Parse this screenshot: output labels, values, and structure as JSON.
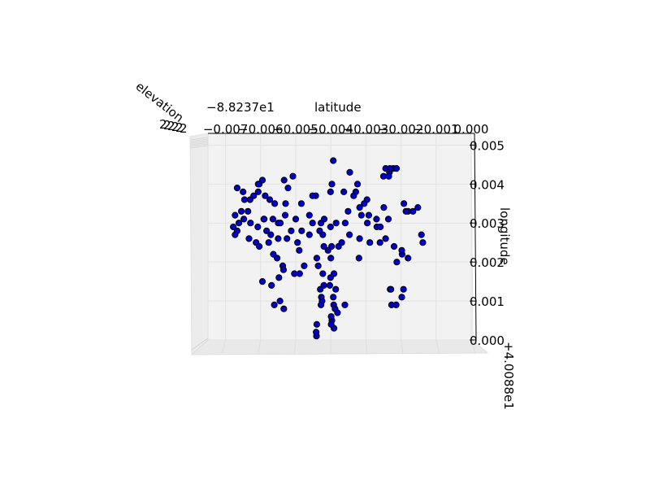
{
  "chart_data": {
    "type": "scatter",
    "projection": "3d",
    "axis_labels": {
      "x": "latitude",
      "y": "longitude",
      "z": "elevation"
    },
    "offset_text": {
      "x": "−8.8237e1",
      "y": "+4.0088e1"
    },
    "x_ticks": [
      "−0.007",
      "−0.006",
      "−0.005",
      "−0.004",
      "−0.003",
      "−0.002",
      "−0.001",
      "0.000"
    ],
    "x_ticks_vis": [
      "0.007",
      "0.006",
      "0.005",
      "0.004",
      "0.003",
      "0.002",
      "0.001",
      "0.000"
    ],
    "y_ticks": [
      "0.000",
      "0.001",
      "0.002",
      "0.003",
      "0.004",
      "0.005"
    ],
    "xlim": [
      -0.0075,
      0.0
    ],
    "ylim": [
      0.0,
      0.0053
    ],
    "grid": true,
    "marker_color": "#0000cc",
    "marker_edge": "#000000",
    "pane_color": "#f2f2f2",
    "points": [
      [
        -0.00393,
        0.0046
      ],
      [
        -0.00346,
        0.0043
      ],
      [
        -0.00222,
        0.0044
      ],
      [
        -0.00213,
        0.0044
      ],
      [
        -0.00233,
        0.0043
      ],
      [
        -0.00235,
        0.0042
      ],
      [
        -0.00244,
        0.0044
      ],
      [
        -0.0025,
        0.0042
      ],
      [
        -0.00232,
        0.0044
      ],
      [
        -0.00604,
        0.004
      ],
      [
        -0.00607,
        0.004
      ],
      [
        -0.00595,
        0.0041
      ],
      [
        -0.00607,
        0.0038
      ],
      [
        -0.0062,
        0.0037
      ],
      [
        -0.0063,
        0.0036
      ],
      [
        -0.00587,
        0.0037
      ],
      [
        -0.00533,
        0.0041
      ],
      [
        -0.00508,
        0.0042
      ],
      [
        -0.00522,
        0.0039
      ],
      [
        -0.00574,
        0.0036
      ],
      [
        -0.0056,
        0.0035
      ],
      [
        -0.00529,
        0.0035
      ],
      [
        -0.00484,
        0.0035
      ],
      [
        -0.00443,
        0.0037
      ],
      [
        -0.00452,
        0.0037
      ],
      [
        -0.00401,
        0.0038
      ],
      [
        -0.00397,
        0.004
      ],
      [
        -0.00363,
        0.0038
      ],
      [
        -0.00324,
        0.004
      ],
      [
        -0.00335,
        0.0037
      ],
      [
        -0.00329,
        0.0038
      ],
      [
        -0.00297,
        0.0036
      ],
      [
        -0.00305,
        0.0035
      ],
      [
        -0.00318,
        0.0034
      ],
      [
        -0.00292,
        0.0032
      ],
      [
        -0.00249,
        0.0034
      ],
      [
        -0.00192,
        0.0035
      ],
      [
        -0.00152,
        0.0034
      ],
      [
        -0.0018,
        0.0033
      ],
      [
        -0.00166,
        0.0033
      ],
      [
        -0.00646,
        0.0036
      ],
      [
        -0.00636,
        0.0033
      ],
      [
        -0.00655,
        0.0033
      ],
      [
        -0.00648,
        0.0031
      ],
      [
        -0.00629,
        0.003
      ],
      [
        -0.00608,
        0.0029
      ],
      [
        -0.00591,
        0.0031
      ],
      [
        -0.0059,
        0.0031
      ],
      [
        -0.00565,
        0.0031
      ],
      [
        -0.0055,
        0.003
      ],
      [
        -0.00544,
        0.003
      ],
      [
        -0.0053,
        0.0032
      ],
      [
        -0.005,
        0.0031
      ],
      [
        -0.00461,
        0.0032
      ],
      [
        -0.00483,
        0.0028
      ],
      [
        -0.00452,
        0.003
      ],
      [
        -0.00428,
        0.003
      ],
      [
        -0.00419,
        0.0031
      ],
      [
        -0.00401,
        0.0029
      ],
      [
        -0.00385,
        0.003
      ],
      [
        -0.00359,
        0.003
      ],
      [
        -0.00351,
        0.0033
      ],
      [
        -0.00313,
        0.0032
      ],
      [
        -0.00296,
        0.003
      ],
      [
        -0.0027,
        0.0031
      ],
      [
        -0.00269,
        0.0029
      ],
      [
        -0.00259,
        0.0029
      ],
      [
        -0.00236,
        0.0031
      ],
      [
        -0.00244,
        0.0026
      ],
      [
        -0.00678,
        0.0029
      ],
      [
        -0.00667,
        0.0028
      ],
      [
        -0.00673,
        0.0027
      ],
      [
        -0.00633,
        0.0026
      ],
      [
        -0.00613,
        0.0025
      ],
      [
        -0.00604,
        0.0024
      ],
      [
        -0.00577,
        0.0025
      ],
      [
        -0.0055,
        0.0026
      ],
      [
        -0.00525,
        0.0026
      ],
      [
        -0.00495,
        0.0025
      ],
      [
        -0.0049,
        0.0023
      ],
      [
        -0.00461,
        0.0027
      ],
      [
        -0.00432,
        0.0028
      ],
      [
        -0.00423,
        0.0027
      ],
      [
        -0.0042,
        0.0024
      ],
      [
        -0.00398,
        0.0024
      ],
      [
        -0.00378,
        0.0024
      ],
      [
        -0.00369,
        0.0025
      ],
      [
        -0.00347,
        0.0027
      ],
      [
        -0.00318,
        0.0026
      ],
      [
        -0.00289,
        0.0025
      ],
      [
        -0.0026,
        0.0025
      ],
      [
        -0.0022,
        0.0024
      ],
      [
        -0.00197,
        0.0022
      ],
      [
        -0.00142,
        0.0027
      ],
      [
        -0.00138,
        0.0025
      ],
      [
        -0.00564,
        0.0022
      ],
      [
        -0.00553,
        0.0021
      ],
      [
        -0.00537,
        0.0019
      ],
      [
        -0.00535,
        0.0018
      ],
      [
        -0.00504,
        0.0017
      ],
      [
        -0.00489,
        0.0017
      ],
      [
        -0.00476,
        0.0019
      ],
      [
        -0.0044,
        0.0021
      ],
      [
        -0.00436,
        0.0019
      ],
      [
        -0.00423,
        0.0017
      ],
      [
        -0.0042,
        0.0014
      ],
      [
        -0.0043,
        0.0013
      ],
      [
        -0.00427,
        0.0011
      ],
      [
        -0.00425,
        0.001
      ],
      [
        -0.00428,
        0.0009
      ],
      [
        -0.00441,
        0.0001
      ],
      [
        -0.0044,
        0.0004
      ],
      [
        -0.00442,
        0.0002
      ],
      [
        -0.00386,
        0.0013
      ],
      [
        -0.00393,
        0.0011
      ],
      [
        -0.00392,
        0.0009
      ],
      [
        -0.00388,
        0.0008
      ],
      [
        -0.00381,
        0.0007
      ],
      [
        -0.00397,
        0.0005
      ],
      [
        -0.0036,
        0.0009
      ],
      [
        -0.00231,
        0.0013
      ],
      [
        -0.00229,
        0.0013
      ],
      [
        -0.00227,
        0.0009
      ],
      [
        -0.00214,
        0.0009
      ],
      [
        -0.00198,
        0.0011
      ],
      [
        -0.00193,
        0.0013
      ],
      [
        -0.00561,
        0.0009
      ],
      [
        -0.00545,
        0.001
      ],
      [
        -0.00534,
        0.0008
      ],
      [
        -0.00569,
        0.0014
      ],
      [
        -0.00548,
        0.0016
      ],
      [
        -0.00595,
        0.0015
      ],
      [
        -0.0065,
        0.0038
      ],
      [
        -0.00667,
        0.0039
      ],
      [
        -0.00673,
        0.0032
      ],
      [
        -0.00662,
        0.003
      ],
      [
        -0.00583,
        0.0028
      ],
      [
        -0.00571,
        0.0027
      ],
      [
        -0.00513,
        0.0028
      ],
      [
        -0.00408,
        0.0023
      ],
      [
        -0.004,
        0.0021
      ],
      [
        -0.00401,
        0.0016
      ],
      [
        -0.00403,
        0.0014
      ],
      [
        -0.00391,
        0.0017
      ],
      [
        -0.00399,
        0.0006
      ],
      [
        -0.00391,
        0.0003
      ],
      [
        -0.00399,
        0.0004
      ],
      [
        -0.00212,
        0.002
      ],
      [
        -0.00198,
        0.0023
      ],
      [
        -0.0018,
        0.0021
      ],
      [
        -0.00186,
        0.0033
      ],
      [
        -0.0032,
        0.0021
      ]
    ]
  }
}
